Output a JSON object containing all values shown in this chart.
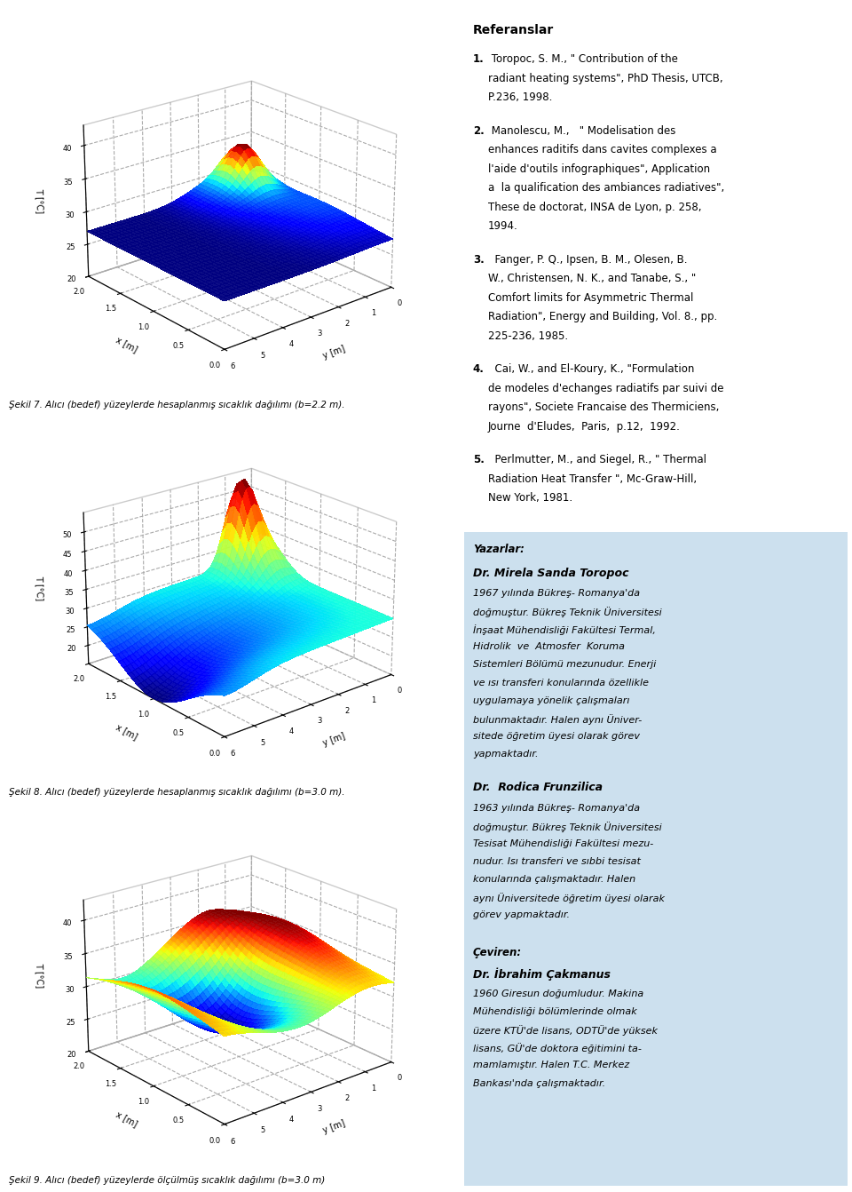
{
  "fig_width": 9.6,
  "fig_height": 13.42,
  "bg_color": "#ffffff",
  "box_color": "#cce0ee",
  "caption1": "Şekil 7. Alıcı (bedef) yüzeylerde hesaplanmış sıcaklık dağılımı (b=2.2 m).",
  "caption2": "Şekil 8. Alıcı (bedef) yüzeylerde hesaplanmış sıcaklık dağılımı (b=3.0 m).",
  "caption3": "Şekil 9. Alıcı (bedef) yüzeylerde ölçülmüş sıcaklık dağılımı (b=3.0 m)",
  "ref_title": "Referanslar",
  "ref1_bold": "1.",
  "ref1_text": " Toropoc, S. M., \" Contribution of the\nradiant heating systems\", PhD Thesis, UTCB,\nP.236, 1998.",
  "ref2_bold": "2.",
  "ref2_text": " Manolescu, M.,   \" Modelisation des\nenhances raditifs dans cavites complexes a\nl'aide d'outils infographiques\", Application\na  la qualification des ambiances radiatives\",\nThese de doctorat, INSA de Lyon, p. 258,\n1994.",
  "ref3_bold": "3.",
  "ref3_text": "  Fanger, P. Q., Ipsen, B. M., Olesen, B.\nW., Christensen, N. K., and Tanabe, S., \"\nComfort limits for Asymmetric Thermal\nRadiation\", Energy and Building, Vol. 8., pp.\n225-236, 1985.",
  "ref4_bold": "4.",
  "ref4_text": "  Cai, W., and El-Koury, K., \"Formulation\nde modeles d'echanges radiatifs par suivi de\nrayons\", Societe Francaise des Thermiciens,\nJourne  d'Eludes,  Paris,  p.12,  1992.",
  "ref5_bold": "5.",
  "ref5_text": "  Perlmutter, M., and Siegel, R., \" Thermal\nRadiation Heat Transfer \", Mc-Graw-Hill,\nNew York, 1981.",
  "yazarlar_title": "Yazarlar:",
  "author1_name": "Dr. Mirela Sanda Toropoc",
  "author1_lines": [
    "1967 yılında Bükreş- Romanya'da",
    "doğmuştur. Bükreş Teknik Üniversitesi",
    "İnşaat Mühendisliği Fakültesi Termal,",
    "Hidrolik  ve  Atmosfer  Koruma",
    "Sistemleri Bölümü mezunudur. Enerji",
    "ve ısı transferi konularında özellikle",
    "uygulamaya yönelik çalışmaları",
    "bulunmaktadır. Halen aynı Üniver-",
    "sitede öğretim üyesi olarak görev",
    "yapmaktadır."
  ],
  "author2_name": "Dr.  Rodica Frunzilica",
  "author2_lines": [
    "1963 yılında Bükreş- Romanya'da",
    "doğmuştur. Bükreş Teknik Üniversitesi",
    "Tesisat Mühendisliği Fakültesi mezu-",
    "nudur. Isı transferi ve sıbbi tesisat",
    "konularında çalışmaktadır. Halen",
    "aynı Üniversitede öğretim üyesi olarak",
    "görev yapmaktadır."
  ],
  "ceviren_title": "Çeviren:",
  "translator_name": "Dr. İbrahim Çakmanus",
  "translator_lines": [
    "1960 Giresun doğumludur. Makina",
    "Mühendisliği bölümlerinde olmak",
    "üzere KTÜ'de lisans, ODTÜ'de yüksek",
    "lisans, GÜ'de doktora eğitimini ta-",
    "mamlamıştır. Halen T.C. Merkez",
    "Bankası'nda çalışmaktadır."
  ]
}
